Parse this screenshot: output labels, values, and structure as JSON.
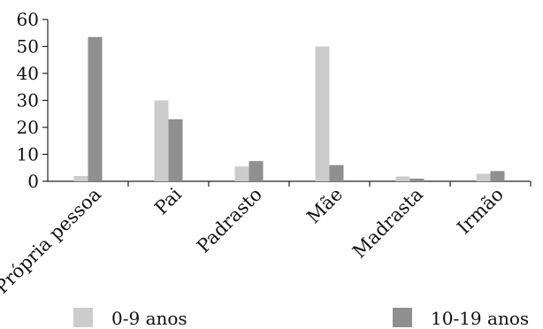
{
  "chart_data": {
    "type": "bar",
    "title": "",
    "xlabel": "",
    "ylabel": "",
    "ylim": [
      0,
      60
    ],
    "yticks": [
      0,
      10,
      20,
      30,
      40,
      50,
      60
    ],
    "grid": false,
    "legend_position": "bottom",
    "categories": [
      "Própria pessoa",
      "Pai",
      "Padrasto",
      "Mãe",
      "Madrasta",
      "Irmão"
    ],
    "series": [
      {
        "name": "0-9 anos",
        "color": "#cccccc",
        "values": [
          2,
          30,
          5.5,
          50,
          1.8,
          2.8
        ]
      },
      {
        "name": "10-19 anos",
        "color": "#8f8f8f",
        "values": [
          53.5,
          23,
          7.5,
          6,
          1,
          3.8
        ]
      }
    ]
  }
}
